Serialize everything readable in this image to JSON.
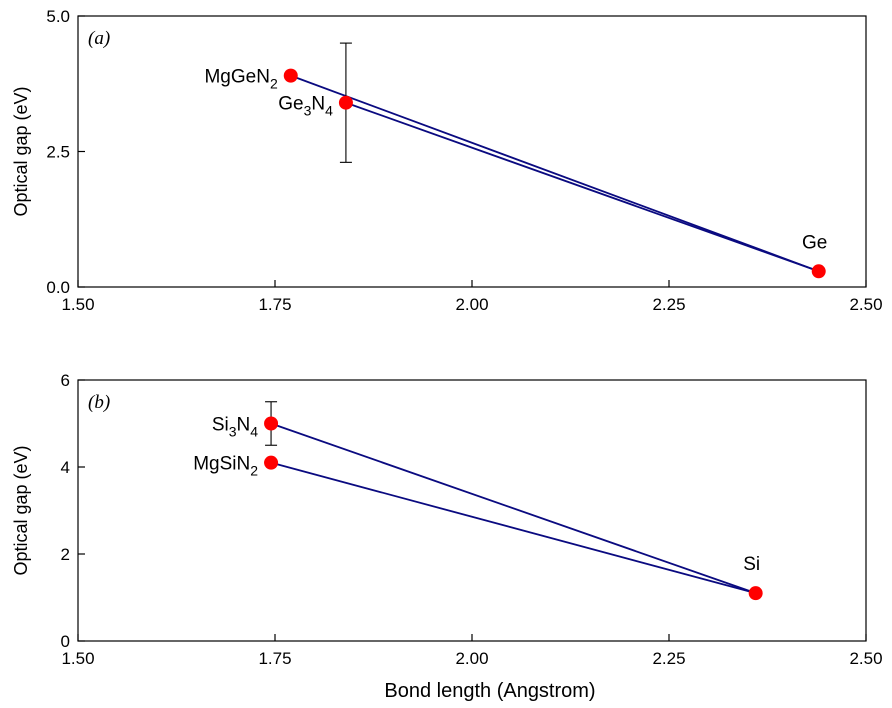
{
  "colors": {
    "line": "#0a0a80",
    "point": "#ff0000",
    "axis": "#000000"
  },
  "chart_data": [
    {
      "type": "scatter",
      "panel_label": "a",
      "xlabel": "",
      "ylabel": "Optical gap (eV)",
      "xlim": [
        1.5,
        2.5
      ],
      "ylim": [
        0,
        5
      ],
      "x_ticks": [
        1.5,
        1.75,
        2.0,
        2.25,
        2.5
      ],
      "x_tick_labels": [
        "1.50",
        "1.75",
        "2.00",
        "2.25",
        "2.50"
      ],
      "y_ticks": [
        0,
        2.5,
        5
      ],
      "y_tick_labels": [
        "0.0",
        "2.5",
        "5.0"
      ],
      "grid": false,
      "points": [
        {
          "label": "MgGeN",
          "sub": "2",
          "x": 1.77,
          "y": 3.9,
          "label_side": "left"
        },
        {
          "label": "Ge",
          "sub": "3",
          "label2": "N",
          "sub2": "4",
          "x": 1.84,
          "y": 3.4,
          "label_side": "left",
          "err_low": 2.3,
          "err_high": 4.5
        },
        {
          "label": "Ge",
          "x": 2.44,
          "y": 0.29,
          "label_side": "above"
        }
      ],
      "lines": [
        {
          "from": 0,
          "to": 2
        },
        {
          "from": 1,
          "to": 2
        }
      ]
    },
    {
      "type": "scatter",
      "panel_label": "b",
      "xlabel": "Bond length (Angstrom)",
      "ylabel": "Optical gap (eV)",
      "xlim": [
        1.5,
        2.5
      ],
      "ylim": [
        0,
        6
      ],
      "x_ticks": [
        1.5,
        1.75,
        2.0,
        2.25,
        2.5
      ],
      "x_tick_labels": [
        "1.50",
        "1.75",
        "2.00",
        "2.25",
        "2.50"
      ],
      "y_ticks": [
        0,
        2,
        4,
        6
      ],
      "y_tick_labels": [
        "0",
        "2",
        "4",
        "6"
      ],
      "grid": false,
      "points": [
        {
          "label": "Si",
          "sub": "3",
          "label2": "N",
          "sub2": "4",
          "x": 1.745,
          "y": 5.0,
          "label_side": "left",
          "err_low": 4.5,
          "err_high": 5.5
        },
        {
          "label": "MgSiN",
          "sub": "2",
          "x": 1.745,
          "y": 4.1,
          "label_side": "left"
        },
        {
          "label": "Si",
          "x": 2.36,
          "y": 1.1,
          "label_side": "above"
        }
      ],
      "lines": [
        {
          "from": 0,
          "to": 2
        },
        {
          "from": 1,
          "to": 2
        }
      ]
    }
  ]
}
